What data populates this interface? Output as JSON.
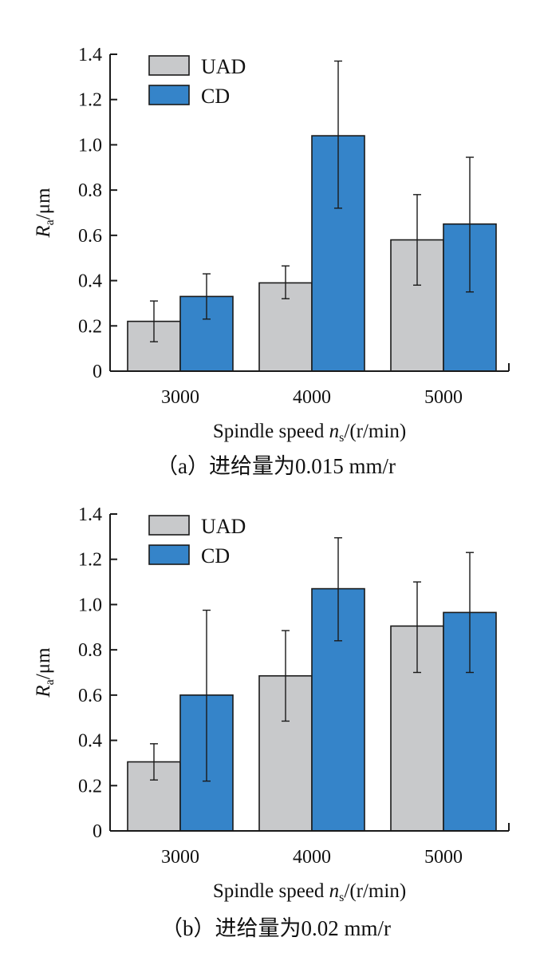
{
  "chart_data": [
    {
      "type": "bar",
      "caption": "（a）进给量为0.015 mm/r",
      "categories": [
        "3000",
        "4000",
        "5000"
      ],
      "xlabel": {
        "prefix": "Spindle speed ",
        "var": "n",
        "sub": "s",
        "suffix": "/(r/min)"
      },
      "ylabel": {
        "var": "R",
        "sub": "a",
        "suffix": "/μm"
      },
      "ylim": [
        0,
        1.4
      ],
      "yticks": [
        "0",
        "0.2",
        "0.4",
        "0.6",
        "0.8",
        "1.0",
        "1.2",
        "1.4"
      ],
      "ytick_values": [
        0,
        0.2,
        0.4,
        0.6,
        0.8,
        1.0,
        1.2,
        1.4
      ],
      "legend_position": "top-left",
      "grid": false,
      "series": [
        {
          "name": "UAD",
          "color": "#c8c9cb",
          "values": [
            0.22,
            0.39,
            0.58
          ],
          "error_low": [
            0.13,
            0.32,
            0.38
          ],
          "error_high": [
            0.31,
            0.465,
            0.78
          ]
        },
        {
          "name": "CD",
          "color": "#3584c9",
          "values": [
            0.33,
            1.04,
            0.65
          ],
          "error_low": [
            0.23,
            0.72,
            0.35
          ],
          "error_high": [
            0.43,
            1.37,
            0.945
          ]
        }
      ]
    },
    {
      "type": "bar",
      "caption": "（b）进给量为0.02 mm/r",
      "categories": [
        "3000",
        "4000",
        "5000"
      ],
      "xlabel": {
        "prefix": "Spindle speed ",
        "var": "n",
        "sub": "s",
        "suffix": "/(r/min)"
      },
      "ylabel": {
        "var": "R",
        "sub": "a",
        "suffix": "/μm"
      },
      "ylim": [
        0,
        1.4
      ],
      "yticks": [
        "0",
        "0.2",
        "0.4",
        "0.6",
        "0.8",
        "1.0",
        "1.2",
        "1.4"
      ],
      "ytick_values": [
        0,
        0.2,
        0.4,
        0.6,
        0.8,
        1.0,
        1.2,
        1.4
      ],
      "legend_position": "top-left",
      "grid": false,
      "series": [
        {
          "name": "UAD",
          "color": "#c8c9cb",
          "values": [
            0.305,
            0.685,
            0.905
          ],
          "error_low": [
            0.225,
            0.485,
            0.7
          ],
          "error_high": [
            0.385,
            0.885,
            1.1
          ]
        },
        {
          "name": "CD",
          "color": "#3584c9",
          "values": [
            0.6,
            1.07,
            0.965
          ],
          "error_low": [
            0.22,
            0.84,
            0.7
          ],
          "error_high": [
            0.975,
            1.295,
            1.23
          ]
        }
      ]
    }
  ]
}
